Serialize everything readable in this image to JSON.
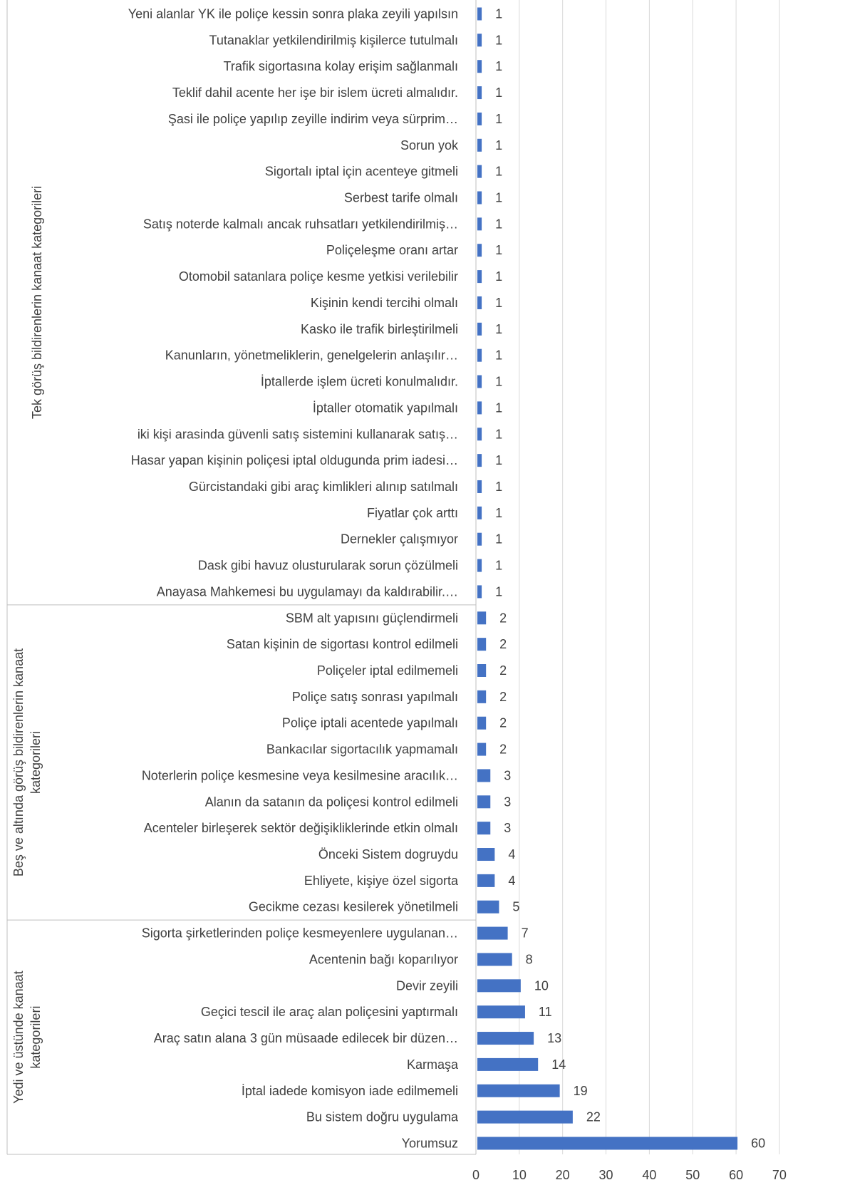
{
  "chart_data": {
    "type": "bar",
    "orientation": "horizontal",
    "bar_color": "#4472C4",
    "grid": true,
    "xlim": [
      0,
      70
    ],
    "xticks": [
      0,
      10,
      20,
      30,
      40,
      50,
      60,
      70
    ],
    "groups": [
      {
        "label": "Tek görüş bildirenlerin kanaat kategorileri",
        "label_lines": [
          "Tek görüş bildirenlerin kanaat kategorileri"
        ],
        "categories": [
          {
            "label": "Yeni alanlar YK ile poliçe kessin sonra plaka zeyili yapılsın",
            "value": 1
          },
          {
            "label": "Tutanaklar yetkilendirilmiş kişilerce tutulmalı",
            "value": 1
          },
          {
            "label": "Trafik sigortasına kolay erişim sağlanmalı",
            "value": 1
          },
          {
            "label": "Teklif dahil acente her işe bir islem ücreti almalıdır.",
            "value": 1
          },
          {
            "label": "Şasi ile poliçe yapılıp zeyille indirim veya sürprim…",
            "value": 1
          },
          {
            "label": "Sorun yok",
            "value": 1
          },
          {
            "label": "Sigortalı iptal için acenteye gitmeli",
            "value": 1
          },
          {
            "label": "Serbest tarife olmalı",
            "value": 1
          },
          {
            "label": "Satış noterde kalmalı ancak ruhsatları yetkilendirilmiş…",
            "value": 1
          },
          {
            "label": "Poliçeleşme oranı artar",
            "value": 1
          },
          {
            "label": "Otomobil satanlara poliçe kesme yetkisi verilebilir",
            "value": 1
          },
          {
            "label": "Kişinin kendi tercihi olmalı",
            "value": 1
          },
          {
            "label": "Kasko ile trafik birleştirilmeli",
            "value": 1
          },
          {
            "label": "Kanunların, yönetmeliklerin, genelgelerin anlaşılır…",
            "value": 1
          },
          {
            "label": "İptallerde işlem ücreti konulmalıdır.",
            "value": 1
          },
          {
            "label": "İptaller otomatik yapılmalı",
            "value": 1
          },
          {
            "label": "iki kişi arasinda güvenli satış sistemini kullanarak satış…",
            "value": 1
          },
          {
            "label": "Hasar yapan kişinin poliçesi iptal oldugunda prim iadesi…",
            "value": 1
          },
          {
            "label": "Gürcistandaki gibi araç kimlikleri alınıp satılmalı",
            "value": 1
          },
          {
            "label": "Fiyatlar çok arttı",
            "value": 1
          },
          {
            "label": "Dernekler çalışmıyor",
            "value": 1
          },
          {
            "label": "Dask gibi havuz olusturularak sorun çözülmeli",
            "value": 1
          },
          {
            "label": "Anayasa Mahkemesi bu uygulamayı da kaldırabilir.…",
            "value": 1
          }
        ]
      },
      {
        "label": "Beş ve altında görüş bildirenlerin kanaat kategorileri",
        "label_lines": [
          "Beş ve altında görüş bildirenlerin kanaat",
          "kategorileri"
        ],
        "categories": [
          {
            "label": "SBM alt yapısını güçlendirmeli",
            "value": 2
          },
          {
            "label": "Satan kişinin de sigortası kontrol edilmeli",
            "value": 2
          },
          {
            "label": "Poliçeler iptal edilmemeli",
            "value": 2
          },
          {
            "label": "Poliçe satış sonrası yapılmalı",
            "value": 2
          },
          {
            "label": "Poliçe iptali acentede yapılmalı",
            "value": 2
          },
          {
            "label": "Bankacılar sigortacılık yapmamalı",
            "value": 2
          },
          {
            "label": "Noterlerin poliçe kesmesine veya kesilmesine aracılık…",
            "value": 3
          },
          {
            "label": "Alanın da satanın da poliçesi kontrol edilmeli",
            "value": 3
          },
          {
            "label": "Acenteler birleşerek sektör değişikliklerinde etkin olmalı",
            "value": 3
          },
          {
            "label": "Önceki Sistem dogruydu",
            "value": 4
          },
          {
            "label": "Ehliyete, kişiye özel sigorta",
            "value": 4
          },
          {
            "label": "Gecikme cezası kesilerek yönetilmeli",
            "value": 5
          }
        ]
      },
      {
        "label": "Yedi ve üstünde kanaat kategorileri",
        "label_lines": [
          "Yedi ve üstünde kanaat",
          "kategorileri"
        ],
        "categories": [
          {
            "label": "Sigorta şirketlerinden poliçe kesmeyenlere uygulanan…",
            "value": 7
          },
          {
            "label": "Acentenin bağı koparılıyor",
            "value": 8
          },
          {
            "label": "Devir zeyili",
            "value": 10
          },
          {
            "label": "Geçici tescil ile araç alan poliçesini yaptırmalı",
            "value": 11
          },
          {
            "label": "Araç satın alana 3 gün müsaade edilecek bir düzen…",
            "value": 13
          },
          {
            "label": "Karmaşa",
            "value": 14
          },
          {
            "label": "İptal iadede komisyon iade edilmemeli",
            "value": 19
          },
          {
            "label": "Bu sistem doğru uygulama",
            "value": 22
          },
          {
            "label": "Yorumsuz",
            "value": 60
          }
        ]
      }
    ]
  }
}
